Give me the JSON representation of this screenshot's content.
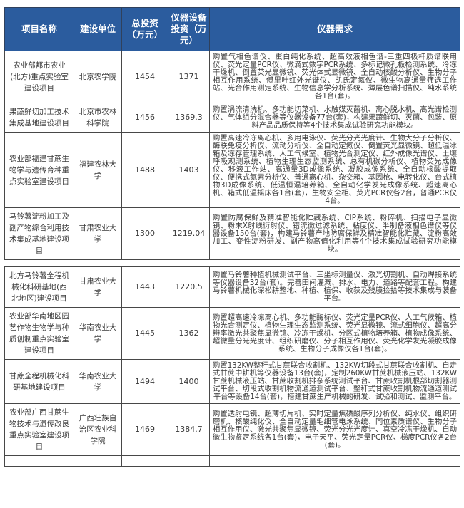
{
  "colors": {
    "header_bg": "#2b5c9e",
    "header_text": "#ffffff",
    "border": "#474747",
    "body_text": "#3a3a3a",
    "page_bg": "#ffffff"
  },
  "table": {
    "header": {
      "columns": [
        "项目名称",
        "建设单位",
        "总投资（万元）",
        "仪器设备投资（万元）",
        "仪器需求"
      ]
    },
    "sections": [
      {
        "rows": [
          {
            "project": "农业部都市农业(北方)重点实验室建设项目",
            "unit": "北京农学院",
            "total": "1454",
            "equipment": "1371",
            "demand": "购置气相色谱仪、蛋白纯化系统、超高效液相色谱-三重四极杆质谱联用仪、荧光定量PCR仪、微滴式数字PCR系统、多标记微孔板检测系统、冷冻干燥机、倒置荧光显微镜、荧光体式显微镜、全自动核酸分析仪、生物分子相互作用系统、傅里叶红外光谱仪、凯氏定氮仪、微生物高通量筛选工作站、光合作用测定系统、生物信息学分析系统、薄层色谱扫描仪、纯水系统各1台(套)。"
          },
          {
            "project": "果蔬鲜切加工技术集成基地建设项目",
            "unit": "北京市农林科学院",
            "total": "1456",
            "equipment": "1369.3",
            "demand": "购置涡流清洗机、多功能切菜机、水触媒灭菌机、离心脱水机、高光谱检测仪、气体组分混合器等仪器设备77台(套)，构建果蔬鲜切、灭菌、包装、原料产品品质保持等4个技术集成试验研究功能模块。"
          },
          {
            "project": "农业部福建甘蔗生物学与遗传育种重点实验室建设项目",
            "unit": "福建农林大学",
            "total": "1488",
            "equipment": "1403",
            "demand": "购置高速冷冻离心机、多用电泳仪、荧光分光光度计、生物大分子分析仪、酶联免疫分析仪、流动分析仪、全自动定氮仪、倒置荧光显微镜、超低温冰箱及冻存管理系统、人工气候室、植物光合测定仪、红外成像光谱仪、土壤呼吸观测系统、植物生理生态监测系统、总有机碳分析仪、植物荧光成像仪、移液工作站、高通量3D成像系统、凝胶成像系统、全自动核酸提取仪、便携式氮素分析仪、普通离心机、杂交箱、基因枪、电转化仪、台式植物3D成像系统、低温恒温培养箱、全自动化学发光成像系统、超速离心机、箱式低温摇床各1台(套)，生物安全柜、荧光PCR仪各2台，普通PCR仪4台。"
          },
          {
            "project": "马铃薯淀粉加工及副产物综合利用技术集成基地建设项目",
            "unit": "甘肃农业大学",
            "total": "1300",
            "equipment": "1219.04",
            "demand": "购置防腐保鲜及精准智能化贮藏系统、CIP系统、粉碎机、扫描电子显微镜、粉末X射线衍射仪、错流微过滤系统、粘度仪、半制备液相色谱仪等仪器设备150台(套)，构建马铃薯产地防腐保鲜及精准智能化贮藏、淀粉高效加工、变性淀粉研发、副产物高值化利用等4个技术集成试验研究功能模块。"
          }
        ]
      },
      {
        "rows": [
          {
            "project": "北方马铃薯全程机械化科研基地(西北地区)建设项目",
            "unit": "甘肃农业大学",
            "total": "1443",
            "equipment": "1220.5",
            "demand": "购置马铃薯种植机械测试平台、三坐标测量仪、激光切割机、自动焊接系统等仪器设备32台(套)。完善田间灌溉、排水、电力、道路等配套工程。构建马铃薯机械化深松耕整地、种植、植保、收获及残膜捡拾等技术集成与装备平台。"
          },
          {
            "project": "农业部华南地区园艺作物生物学与种质创制重点实验室建设项目",
            "unit": "华南农业大学",
            "total": "1445",
            "equipment": "1362",
            "demand": "购置超高速冷冻离心机、多功能酶标仪、荧光定量PCR仪、人工气候箱、植物光合测定仪、植物生理生态监测系统、荧光显微镜、流式细胞仪、超高分辨率激光共聚焦显微镜、冷冻干燥机、分区式植物培养箱、植物成像系统、超微量分光光度计、组织研磨仪、分子相互作用仪、荧光化学发光凝胶成像系统、生物分子成像仪各1台(套)。"
          },
          {
            "project": "甘蔗全程机械化科研基地建设项目",
            "unit": "华南农业大学",
            "total": "1494",
            "equipment": "1400",
            "demand": "购置132KW整秆式甘蔗联合收割机、132KW切段式甘蔗联合收割机、自走式甘蔗中耕机等仪器设备13台(套)，定制260KW甘蔗机械液压站、132KW甘蔗机械液压站、甘蔗收割机排杂系统测试平台、甘蔗收割机根部切割器测试平台、切段式收割机物流通道测试平台、整秆式甘蔗收割机物流通道测试平台等设备14台(套)，搭建甘蔗生产机械的研发、试验和测试、监测平台。"
          },
          {
            "project": "农业部广西甘蔗生物技术与遗传改良重点实验室建设项目",
            "unit": "广西壮族自治区农业科学院",
            "total": "1469",
            "equipment": "1384.7",
            "demand": "购置透射电镜、超薄切片机、实时定量焦磷酸序列分析仪、纯水仪、组织研磨机、核酸纯化仪、全自动定量毛细管电泳系统、同位素质谱仪、生物分子相互作用仪、激光共聚焦显微镜、荧光分光光度计、真空冷冻干燥机、自动微生物鉴定系统各1台(套)，电子天平、荧光定量PCR仪、梯度PCR仪各2台(套)。"
          }
        ]
      }
    ]
  }
}
